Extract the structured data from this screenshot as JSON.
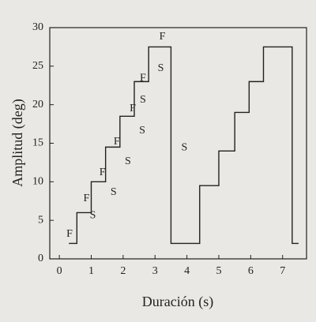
{
  "chart_data": {
    "type": "line",
    "x_label": "Duración (s)",
    "y_label": "Amplitud (deg)",
    "x": [
      0.3,
      0.55,
      0.55,
      1.0,
      1.0,
      1.45,
      1.45,
      1.9,
      1.9,
      2.35,
      2.35,
      2.8,
      2.8,
      3.5,
      3.5,
      4.4,
      4.4,
      5.0,
      5.0,
      5.5,
      5.5,
      5.95,
      5.95,
      6.4,
      6.4,
      7.3,
      7.3,
      7.5
    ],
    "series": [
      {
        "color": "#222222",
        "values": [
          2,
          2,
          6,
          6,
          10,
          10,
          14.5,
          14.5,
          18.5,
          18.5,
          23,
          23,
          27.5,
          27.5,
          2,
          2,
          9.5,
          9.5,
          14,
          14,
          19,
          19,
          23,
          23,
          27.5,
          27.5,
          2,
          2
        ]
      }
    ],
    "annotations": [
      {
        "text": "F",
        "x": 0.32,
        "y": 3.2
      },
      {
        "text": "F",
        "x": 0.85,
        "y": 7.8
      },
      {
        "text": "S",
        "x": 1.05,
        "y": 5.6
      },
      {
        "text": "F",
        "x": 1.35,
        "y": 11.2
      },
      {
        "text": "S",
        "x": 1.7,
        "y": 8.6
      },
      {
        "text": "F",
        "x": 1.8,
        "y": 15.2
      },
      {
        "text": "S",
        "x": 2.15,
        "y": 12.6
      },
      {
        "text": "F",
        "x": 2.3,
        "y": 19.5
      },
      {
        "text": "S",
        "x": 2.6,
        "y": 16.6
      },
      {
        "text": "F",
        "x": 2.62,
        "y": 23.4
      },
      {
        "text": "S",
        "x": 2.62,
        "y": 20.6
      },
      {
        "text": "F",
        "x": 3.23,
        "y": 28.8
      },
      {
        "text": "S",
        "x": 3.18,
        "y": 24.7
      },
      {
        "text": "S",
        "x": 3.92,
        "y": 14.4
      }
    ],
    "xlim": [
      -0.3,
      7.75
    ],
    "xticks": [
      0,
      1,
      2,
      3,
      4,
      5,
      6,
      7
    ],
    "ylim": [
      0,
      30
    ],
    "yticks": [
      0,
      5,
      10,
      15,
      20,
      25,
      30
    ]
  }
}
